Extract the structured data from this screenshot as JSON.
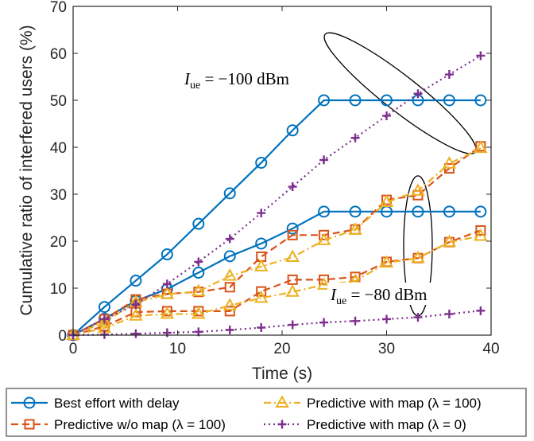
{
  "chart_data": {
    "type": "line",
    "xlabel": "Time (s)",
    "ylabel": "Cumulative ratio of interfered users (%)",
    "xlim": [
      0,
      40
    ],
    "ylim": [
      0,
      70
    ],
    "xticks": [
      0,
      10,
      20,
      30,
      40
    ],
    "yticks": [
      0,
      10,
      20,
      30,
      40,
      50,
      60,
      70
    ],
    "grid": false,
    "legend_position": "below",
    "colors": {
      "best_effort": "#0072BD",
      "predictive_wo_map": "#D95319",
      "predictive_map_100": "#EDB120",
      "predictive_map_0": "#7E2F8E"
    },
    "x": [
      0,
      3,
      6,
      9,
      12,
      15,
      18,
      21,
      24,
      27,
      30,
      33,
      36,
      39
    ],
    "series": [
      {
        "name": "Best effort with delay",
        "group": "-100 dBm",
        "style": "best_effort",
        "values": [
          0,
          6,
          11.6,
          17.2,
          23.7,
          30.2,
          36.7,
          43.6,
          50,
          50,
          50,
          50,
          50,
          50
        ]
      },
      {
        "name": "Best effort with delay",
        "group": "-80 dBm",
        "style": "best_effort",
        "values": [
          0,
          3.5,
          7.3,
          9.8,
          13.3,
          16.8,
          19.5,
          22.7,
          26.3,
          26.3,
          26.3,
          26.3,
          26.3,
          26.3
        ]
      },
      {
        "name": "Predictive w/o map (λ = 100)",
        "group": "-100 dBm",
        "style": "predictive_wo_map",
        "values": [
          0,
          3.4,
          7.6,
          8.8,
          9.2,
          10.2,
          16.7,
          21.3,
          21.3,
          22.5,
          28.8,
          29.8,
          35.5,
          40.2
        ]
      },
      {
        "name": "Predictive w/o map (λ = 100)",
        "group": "-80 dBm",
        "style": "predictive_wo_map",
        "values": [
          0,
          1.9,
          4.9,
          5.1,
          5.1,
          5.1,
          9.3,
          11.8,
          11.8,
          12.4,
          15.6,
          16.4,
          19.8,
          22.3
        ]
      },
      {
        "name": "Predictive with map (λ = 100)",
        "group": "-100 dBm",
        "style": "predictive_map_100",
        "values": [
          0,
          2.8,
          7,
          8.7,
          9.3,
          12.6,
          14.6,
          16.6,
          20.2,
          22.4,
          28.3,
          30.7,
          36.5,
          39.8
        ]
      },
      {
        "name": "Predictive with map (λ = 100)",
        "group": "-80 dBm",
        "style": "predictive_map_100",
        "values": [
          0,
          1.5,
          4.1,
          4.5,
          4.5,
          6.3,
          7.9,
          9.2,
          10.7,
          11.5,
          15.4,
          16.4,
          19.8,
          21.1
        ]
      },
      {
        "name": "Predictive with map (λ = 0)",
        "group": "-100 dBm",
        "style": "predictive_map_0",
        "values": [
          0,
          3.4,
          6.5,
          10.9,
          15.6,
          20.5,
          26,
          31.6,
          37.3,
          42,
          46.7,
          51.4,
          55.5,
          59.5
        ]
      },
      {
        "name": "Predictive with map (λ = 0)",
        "group": "-80 dBm",
        "style": "predictive_map_0",
        "values": [
          0,
          0.1,
          0.3,
          0.5,
          0.7,
          1.1,
          1.6,
          2.2,
          2.7,
          3,
          3.4,
          3.8,
          4.5,
          5.2
        ]
      }
    ],
    "annotations": [
      {
        "text": "I_ue = −100 dBm",
        "x": 31.5,
        "y": 44.5
      },
      {
        "text": "I_ue = −80 dBm",
        "x": 33,
        "y": 18.5
      }
    ]
  },
  "annotation_labels": {
    "ann1": {
      "symbol": "I",
      "sub": "ue",
      "rest": " = −100 dBm"
    },
    "ann2": {
      "symbol": "I",
      "sub": "ue",
      "rest": " = −80 dBm"
    }
  },
  "legend": [
    {
      "label": "Best effort with delay",
      "style": "best_effort"
    },
    {
      "label": "Predictive with map (λ = 100)",
      "style": "predictive_map_100"
    },
    {
      "label": "Predictive w/o map (λ = 100)",
      "style": "predictive_wo_map"
    },
    {
      "label": "Predictive with map (λ = 0)",
      "style": "predictive_map_0"
    }
  ]
}
